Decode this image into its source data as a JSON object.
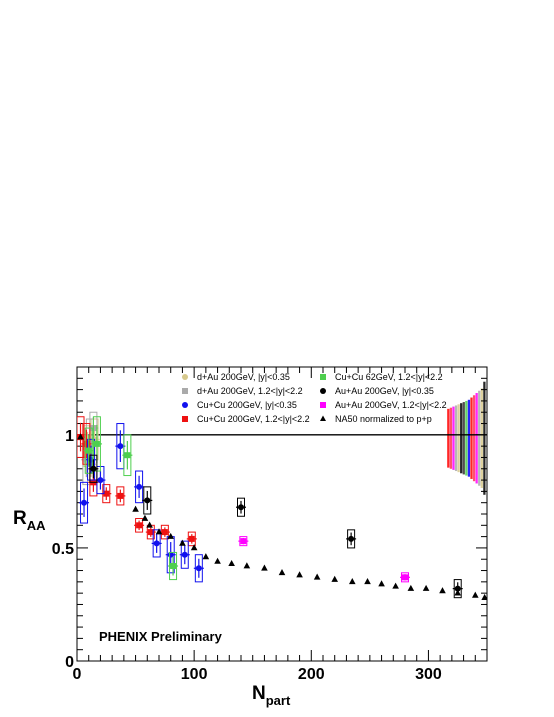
{
  "chart_data": {
    "type": "scatter",
    "xlabel": {
      "main": "N",
      "sub": "part"
    },
    "ylabel": {
      "main": "R",
      "sub": "AA"
    },
    "xlim": [
      0,
      350
    ],
    "ylim": [
      0,
      1.3
    ],
    "x_ticks": [
      0,
      100,
      200,
      300
    ],
    "y_ticks": [
      0,
      0.5,
      1
    ],
    "y_tick_labels": [
      "0",
      "0.5",
      "1"
    ],
    "reference_line": 1.0,
    "annotation": "PHENIX Preliminary",
    "grid": false,
    "legend_position": "top-right",
    "global_uncertainty_bands": {
      "x_start": 316,
      "x_end": 349,
      "center": 0.985,
      "half_widths": [
        0.13,
        0.135,
        0.14,
        0.145,
        0.15,
        0.155,
        0.16,
        0.165,
        0.17,
        0.18,
        0.19,
        0.2,
        0.21,
        0.22,
        0.25
      ],
      "colors": [
        "#ff0000",
        "#ff3355",
        "#ff00ff",
        "#aaaaaa",
        "#d7c98d",
        "#000000",
        "#333333",
        "#4ecf4e",
        "#0000ff"
      ]
    },
    "series": [
      {
        "name": "d+Au 200GeV, |y|<0.35",
        "color": "#d7c98d",
        "marker": "circle",
        "points": [
          [
            9,
            0.95,
            0.09
          ],
          [
            12,
            0.87,
            0.08
          ],
          [
            15,
            0.98,
            0.09
          ]
        ]
      },
      {
        "name": "d+Au 200GeV, 1.2<|y|<2.2",
        "color": "#aaaaaa",
        "marker": "square",
        "points": [
          [
            8,
            0.89,
            0.11
          ],
          [
            11,
            0.97,
            0.1
          ],
          [
            14,
            1.03,
            0.07
          ]
        ]
      },
      {
        "name": "Cu+Cu 200GeV, 1.2<|y|<2.2",
        "color": "#ee1111",
        "marker": "square",
        "points": [
          [
            3,
            0.99,
            0.09
          ],
          [
            8,
            0.96,
            0.09
          ],
          [
            14,
            0.79,
            0.06
          ],
          [
            25,
            0.74,
            0.04
          ],
          [
            37,
            0.73,
            0.04
          ],
          [
            53,
            0.6,
            0.03
          ],
          [
            63,
            0.57,
            0.03
          ],
          [
            75,
            0.57,
            0.03
          ],
          [
            98,
            0.54,
            0.03
          ]
        ]
      },
      {
        "name": "Cu+Cu 200GeV, |y|<0.35",
        "color": "#1111ee",
        "marker": "circle",
        "points": [
          [
            6,
            0.7,
            0.09
          ],
          [
            12,
            0.89,
            0.09
          ],
          [
            20,
            0.8,
            0.06
          ],
          [
            37,
            0.95,
            0.1
          ],
          [
            53,
            0.77,
            0.07
          ],
          [
            68,
            0.52,
            0.06
          ],
          [
            80,
            0.47,
            0.08
          ],
          [
            92,
            0.47,
            0.06
          ],
          [
            104,
            0.41,
            0.06
          ]
        ]
      },
      {
        "name": "Cu+Cu 62GeV,   1.2<|y|<2.2",
        "color": "#4ecf4e",
        "marker": "square",
        "points": [
          [
            10,
            0.93,
            0.1
          ],
          [
            17,
            0.96,
            0.12
          ],
          [
            43,
            0.91,
            0.09
          ],
          [
            82,
            0.42,
            0.06
          ]
        ]
      },
      {
        "name": "Au+Au 200GeV, |y|<0.35",
        "color": "#000000",
        "marker": "circle",
        "points": [
          [
            14,
            0.85,
            0.06
          ],
          [
            60,
            0.71,
            0.06
          ],
          [
            140,
            0.68,
            0.04
          ],
          [
            234,
            0.54,
            0.04
          ],
          [
            325,
            0.32,
            0.04
          ]
        ]
      },
      {
        "name": "Au+Au 200GeV, 1.2<|y|<2.2",
        "color": "#ff00ff",
        "marker": "square",
        "points": [
          [
            142,
            0.53,
            0.02
          ],
          [
            280,
            0.37,
            0.02
          ]
        ]
      },
      {
        "name": "NA50 normalized to p+p",
        "color": "#000000",
        "marker": "triangle",
        "points": [
          [
            3,
            0.99
          ],
          [
            50,
            0.67
          ],
          [
            58,
            0.63
          ],
          [
            62,
            0.6
          ],
          [
            70,
            0.57
          ],
          [
            80,
            0.55
          ],
          [
            90,
            0.52
          ],
          [
            100,
            0.5
          ],
          [
            110,
            0.46
          ],
          [
            120,
            0.44
          ],
          [
            132,
            0.43
          ],
          [
            145,
            0.42
          ],
          [
            160,
            0.41
          ],
          [
            175,
            0.39
          ],
          [
            190,
            0.38
          ],
          [
            205,
            0.37
          ],
          [
            220,
            0.36
          ],
          [
            235,
            0.35
          ],
          [
            248,
            0.35
          ],
          [
            260,
            0.34
          ],
          [
            272,
            0.33
          ],
          [
            285,
            0.32
          ],
          [
            298,
            0.32
          ],
          [
            312,
            0.31
          ],
          [
            325,
            0.3
          ],
          [
            340,
            0.29
          ],
          [
            348,
            0.28
          ]
        ]
      }
    ]
  }
}
